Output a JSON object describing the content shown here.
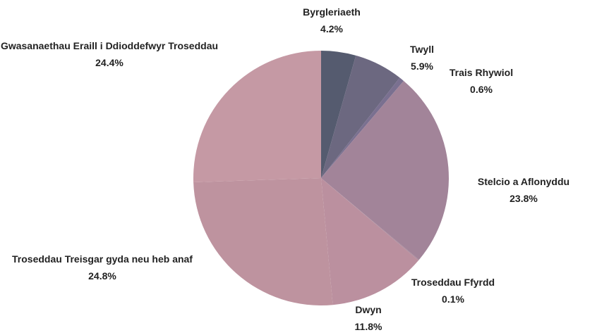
{
  "chart_data": {
    "type": "pie",
    "categories": [
      "Byrgleriaeth",
      "Twyll",
      "Trais Rhywiol",
      "Stelcio a Aflonyddu",
      "Troseddau Ffyrdd",
      "Dwyn",
      "Troseddau Treisgar gyda neu heb anaf",
      "Gwasanaethau Eraill i Ddioddefwyr Troseddau"
    ],
    "values": [
      4.2,
      5.9,
      0.6,
      23.8,
      0.1,
      11.8,
      24.8,
      24.4
    ],
    "value_labels": [
      "4.2%",
      "5.9%",
      "0.6%",
      "23.8%",
      "0.1%",
      "11.8%",
      "24.8%",
      "24.4%"
    ],
    "colors": [
      "#555b6f",
      "#6c6880",
      "#7a7090",
      "#a28499",
      "#a98a9c",
      "#bb909f",
      "#be939f",
      "#c599a4"
    ]
  }
}
